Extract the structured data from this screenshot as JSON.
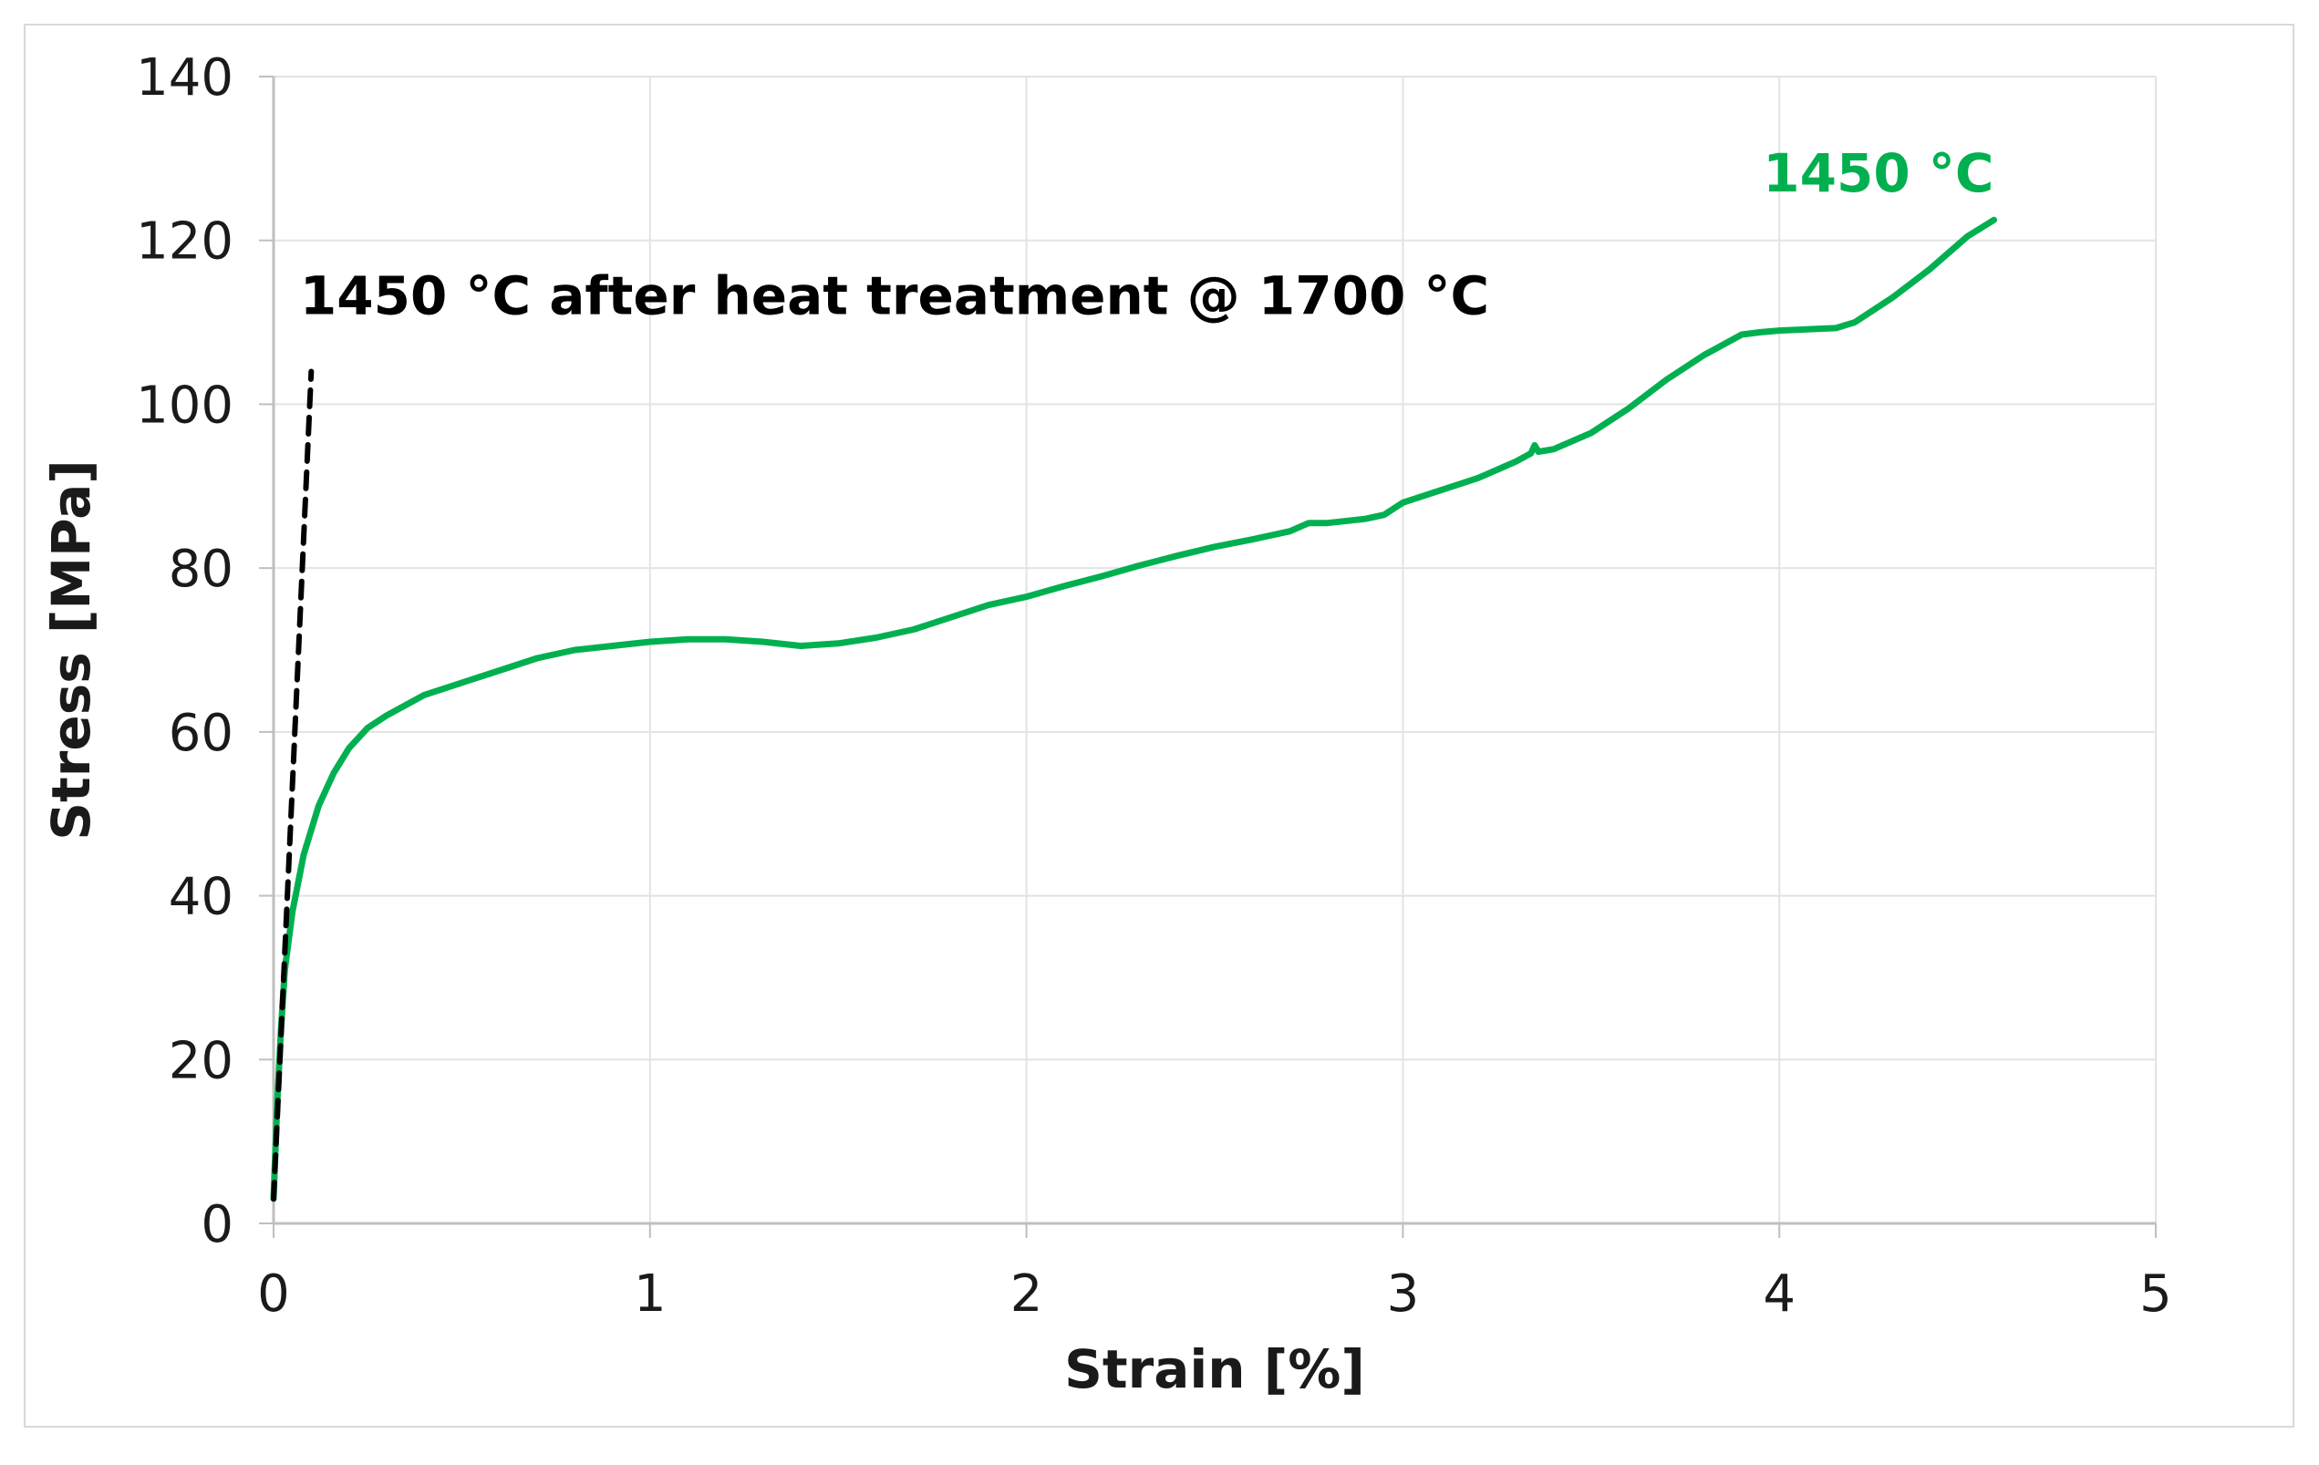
{
  "chart_data": {
    "type": "line",
    "title": "",
    "xlabel": "Strain [%]",
    "ylabel": "Stress [MPa]",
    "xlim": [
      0,
      5
    ],
    "ylim": [
      0,
      140
    ],
    "xticks": [
      0,
      1,
      2,
      3,
      4,
      5
    ],
    "yticks": [
      0,
      20,
      40,
      60,
      80,
      100,
      120,
      140
    ],
    "grid": true,
    "series": [
      {
        "name": "1450 °C",
        "color": "#00b050",
        "style": "solid",
        "x": [
          0.0,
          0.01,
          0.02,
          0.03,
          0.05,
          0.08,
          0.12,
          0.16,
          0.2,
          0.25,
          0.3,
          0.4,
          0.5,
          0.6,
          0.7,
          0.8,
          0.9,
          1.0,
          1.1,
          1.2,
          1.3,
          1.4,
          1.5,
          1.6,
          1.7,
          1.8,
          1.9,
          2.0,
          2.1,
          2.2,
          2.3,
          2.4,
          2.5,
          2.6,
          2.7,
          2.75,
          2.8,
          2.9,
          2.95,
          3.0,
          3.1,
          3.2,
          3.3,
          3.34,
          3.35,
          3.36,
          3.4,
          3.5,
          3.6,
          3.7,
          3.8,
          3.88,
          3.9,
          3.95,
          4.0,
          4.1,
          4.15,
          4.2,
          4.3,
          4.4,
          4.5,
          4.57
        ],
        "y": [
          3,
          15,
          24,
          31,
          38,
          45,
          51,
          55,
          58,
          60.5,
          62,
          64.5,
          66,
          67.5,
          69,
          70,
          70.5,
          71,
          71.3,
          71.3,
          71,
          70.5,
          70.8,
          71.5,
          72.5,
          74,
          75.5,
          76.5,
          77.8,
          79,
          80.3,
          81.5,
          82.6,
          83.5,
          84.5,
          85.5,
          85.5,
          86,
          86.5,
          88,
          89.5,
          91,
          93,
          94,
          95,
          94.2,
          94.5,
          96.5,
          99.5,
          103,
          106,
          108,
          108.5,
          108.8,
          109,
          109.2,
          109.3,
          110,
          113,
          116.5,
          120.5,
          122.5
        ]
      },
      {
        "name": "1450 °C after heat treatment @ 1700 °C",
        "color": "#000000",
        "style": "dashed",
        "x": [
          0.0,
          0.1
        ],
        "y": [
          3,
          104
        ]
      }
    ],
    "annotations": [
      {
        "text": "1450 °C",
        "color": "#00b050",
        "anchor_x": 4.57,
        "anchor_y": 126
      },
      {
        "text": "1450 °C after heat treatment @ 1700 °C",
        "color": "#000000",
        "anchor_x": 0.07,
        "anchor_y": 111
      }
    ]
  }
}
